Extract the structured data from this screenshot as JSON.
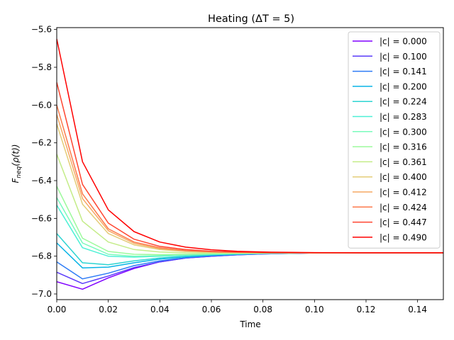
{
  "chart_data": {
    "type": "line",
    "title": "Heating (ΔT = 5)",
    "xlabel": "Time",
    "ylabel": "F_neq(ρ(t))",
    "ylabel_display": {
      "base": "F",
      "sub": "neq",
      "rest": "(ρ(t))"
    },
    "xlim": [
      0,
      0.15
    ],
    "ylim": [
      -7.03,
      -5.59
    ],
    "xticks": [
      0.0,
      0.02,
      0.04,
      0.06,
      0.08,
      0.1,
      0.12,
      0.14
    ],
    "xtick_labels": [
      "0.00",
      "0.02",
      "0.04",
      "0.06",
      "0.08",
      "0.10",
      "0.12",
      "0.14"
    ],
    "yticks": [
      -7.0,
      -6.8,
      -6.6,
      -6.4,
      -6.2,
      -6.0,
      -5.8,
      -5.6
    ],
    "ytick_labels": [
      "−7.0",
      "−6.8",
      "−6.6",
      "−6.4",
      "−6.2",
      "−6.0",
      "−5.8",
      "−5.6"
    ],
    "grid": false,
    "legend_position": "top-right",
    "x": [
      0.0,
      0.01,
      0.02,
      0.03,
      0.04,
      0.05,
      0.06,
      0.07,
      0.08,
      0.09,
      0.1,
      0.12,
      0.14,
      0.15
    ],
    "series": [
      {
        "name": "|c| = 0.000",
        "color": "#8000ff",
        "values": [
          -6.935,
          -6.975,
          -6.915,
          -6.865,
          -6.83,
          -6.81,
          -6.8,
          -6.793,
          -6.788,
          -6.785,
          -6.783,
          -6.782,
          -6.782,
          -6.782
        ]
      },
      {
        "name": "|c| = 0.100",
        "color": "#5a3bfa",
        "values": [
          -6.885,
          -6.945,
          -6.905,
          -6.86,
          -6.83,
          -6.81,
          -6.8,
          -6.793,
          -6.788,
          -6.785,
          -6.783,
          -6.782,
          -6.782,
          -6.782
        ]
      },
      {
        "name": "|c| = 0.141",
        "color": "#2e7cf6",
        "values": [
          -6.83,
          -6.92,
          -6.89,
          -6.85,
          -6.825,
          -6.808,
          -6.798,
          -6.792,
          -6.787,
          -6.785,
          -6.783,
          -6.782,
          -6.782,
          -6.782
        ]
      },
      {
        "name": "|c| = 0.200",
        "color": "#08b4e6",
        "values": [
          -6.73,
          -6.862,
          -6.858,
          -6.835,
          -6.815,
          -6.803,
          -6.795,
          -6.79,
          -6.786,
          -6.784,
          -6.783,
          -6.782,
          -6.782,
          -6.782
        ]
      },
      {
        "name": "|c| = 0.224",
        "color": "#2cd4d2",
        "values": [
          -6.68,
          -6.835,
          -6.845,
          -6.825,
          -6.81,
          -6.8,
          -6.793,
          -6.789,
          -6.786,
          -6.784,
          -6.783,
          -6.782,
          -6.782,
          -6.782
        ]
      },
      {
        "name": "|c| = 0.283",
        "color": "#4ef0d6",
        "values": [
          -6.53,
          -6.755,
          -6.8,
          -6.805,
          -6.8,
          -6.795,
          -6.79,
          -6.787,
          -6.785,
          -6.784,
          -6.783,
          -6.782,
          -6.782,
          -6.782
        ]
      },
      {
        "name": "|c| = 0.300",
        "color": "#7afbbc",
        "values": [
          -6.49,
          -6.73,
          -6.79,
          -6.8,
          -6.797,
          -6.793,
          -6.789,
          -6.786,
          -6.785,
          -6.784,
          -6.783,
          -6.782,
          -6.782,
          -6.782
        ]
      },
      {
        "name": "|c| = 0.316",
        "color": "#9cfa9c",
        "values": [
          -6.43,
          -6.705,
          -6.775,
          -6.79,
          -6.792,
          -6.79,
          -6.787,
          -6.785,
          -6.784,
          -6.783,
          -6.783,
          -6.782,
          -6.782,
          -6.782
        ]
      },
      {
        "name": "|c| = 0.361",
        "color": "#c4ec88",
        "values": [
          -6.26,
          -6.615,
          -6.725,
          -6.765,
          -6.778,
          -6.782,
          -6.783,
          -6.783,
          -6.783,
          -6.783,
          -6.782,
          -6.782,
          -6.782,
          -6.782
        ]
      },
      {
        "name": "|c| = 0.400",
        "color": "#e4cc78",
        "values": [
          -6.1,
          -6.525,
          -6.68,
          -6.74,
          -6.765,
          -6.775,
          -6.779,
          -6.781,
          -6.782,
          -6.782,
          -6.782,
          -6.782,
          -6.782,
          -6.782
        ]
      },
      {
        "name": "|c| = 0.412",
        "color": "#f6a864",
        "values": [
          -6.05,
          -6.495,
          -6.665,
          -6.732,
          -6.76,
          -6.772,
          -6.777,
          -6.78,
          -6.781,
          -6.782,
          -6.782,
          -6.782,
          -6.782,
          -6.782
        ]
      },
      {
        "name": "|c| = 0.424",
        "color": "#fc7a4c",
        "values": [
          -6.0,
          -6.47,
          -6.655,
          -6.725,
          -6.755,
          -6.77,
          -6.776,
          -6.78,
          -6.781,
          -6.782,
          -6.782,
          -6.782,
          -6.782,
          -6.782
        ]
      },
      {
        "name": "|c| = 0.447",
        "color": "#ff4530",
        "values": [
          -5.88,
          -6.42,
          -6.625,
          -6.71,
          -6.748,
          -6.765,
          -6.774,
          -6.778,
          -6.78,
          -6.781,
          -6.782,
          -6.782,
          -6.782,
          -6.782
        ]
      },
      {
        "name": "|c| = 0.490",
        "color": "#ff0000",
        "values": [
          -5.65,
          -6.3,
          -6.555,
          -6.67,
          -6.725,
          -6.752,
          -6.766,
          -6.774,
          -6.778,
          -6.78,
          -6.781,
          -6.782,
          -6.782,
          -6.782
        ]
      }
    ]
  }
}
